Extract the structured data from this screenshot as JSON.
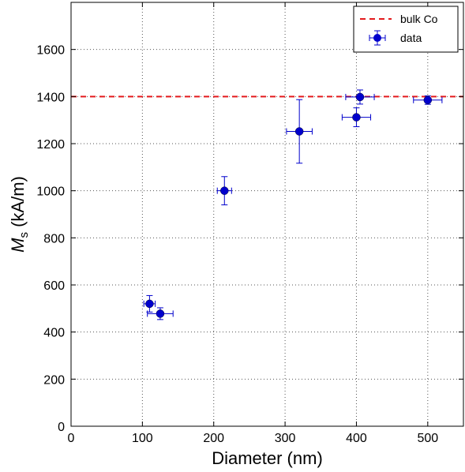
{
  "chart_data": {
    "type": "scatter",
    "xlabel": "Diameter (nm)",
    "ylabel_main": "M",
    "ylabel_sub": "s",
    "ylabel_rest": " (kA/m)",
    "xlim": [
      0,
      550
    ],
    "ylim": [
      0,
      1800
    ],
    "xticks": [
      0,
      100,
      200,
      300,
      400,
      500
    ],
    "yticks": [
      0,
      200,
      400,
      600,
      800,
      1000,
      1200,
      1400,
      1600
    ],
    "grid": true,
    "legend_position": "top-right",
    "reference_line": {
      "name": "bulk Co",
      "y": 1400,
      "style": "dashed",
      "color": "#e31a1c"
    },
    "series": [
      {
        "name": "data",
        "color": "#0000cc",
        "points": [
          {
            "x": 110,
            "y": 520,
            "xerr": 8,
            "yerr": 35
          },
          {
            "x": 125,
            "y": 478,
            "xerr": 18,
            "yerr": 25
          },
          {
            "x": 215,
            "y": 1000,
            "xerr": 10,
            "yerr": 60
          },
          {
            "x": 320,
            "y": 1252,
            "xerr": 18,
            "yerr": 135
          },
          {
            "x": 400,
            "y": 1312,
            "xerr": 20,
            "yerr": 40
          },
          {
            "x": 405,
            "y": 1398,
            "xerr": 20,
            "yerr": 30
          },
          {
            "x": 500,
            "y": 1385,
            "xerr": 20,
            "yerr": 18
          }
        ]
      }
    ]
  }
}
